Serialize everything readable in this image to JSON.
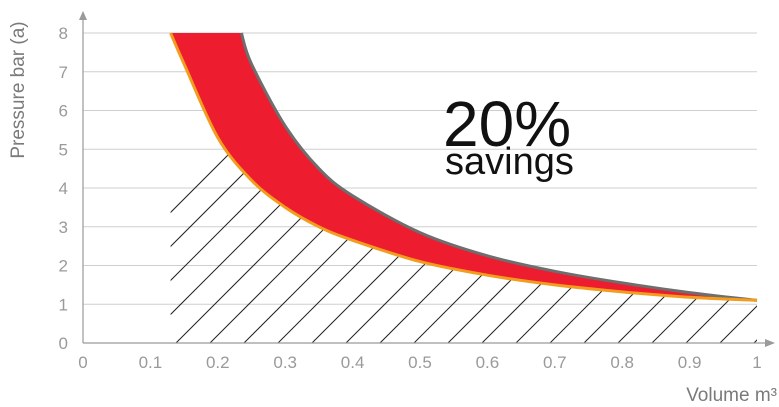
{
  "chart_data": {
    "type": "area",
    "xlabel": "Volume m³",
    "ylabel": "Pressure bar (a)",
    "xlim": [
      0,
      1
    ],
    "ylim": [
      0,
      8
    ],
    "x_ticks": [
      "0",
      "0.1",
      "0.2",
      "0.3",
      "0.4",
      "0.5",
      "0.6",
      "0.7",
      "0.8",
      "0.9",
      "1"
    ],
    "y_ticks": [
      "0",
      "1",
      "2",
      "3",
      "4",
      "5",
      "6",
      "7",
      "8"
    ],
    "grid": true,
    "annotation": {
      "value": "20%",
      "label": "savings"
    },
    "series": [
      {
        "color": "#f39c1e",
        "hatched": true,
        "points": [
          [
            0.13,
            8
          ],
          [
            0.15,
            7.2
          ],
          [
            0.2,
            5.3
          ],
          [
            0.25,
            4.2
          ],
          [
            0.3,
            3.5
          ],
          [
            0.35,
            3.0
          ],
          [
            0.4,
            2.65
          ],
          [
            0.5,
            2.1
          ],
          [
            0.6,
            1.75
          ],
          [
            0.7,
            1.5
          ],
          [
            0.8,
            1.32
          ],
          [
            0.9,
            1.18
          ],
          [
            1.0,
            1.1
          ]
        ]
      },
      {
        "color": "#6e6e6e",
        "points": [
          [
            0.235,
            8
          ],
          [
            0.25,
            7.2
          ],
          [
            0.3,
            5.6
          ],
          [
            0.35,
            4.5
          ],
          [
            0.4,
            3.8
          ],
          [
            0.5,
            2.85
          ],
          [
            0.6,
            2.25
          ],
          [
            0.7,
            1.85
          ],
          [
            0.8,
            1.55
          ],
          [
            0.9,
            1.3
          ],
          [
            1.0,
            1.1
          ]
        ]
      }
    ],
    "fill_between_color": "#ed1c2e"
  }
}
